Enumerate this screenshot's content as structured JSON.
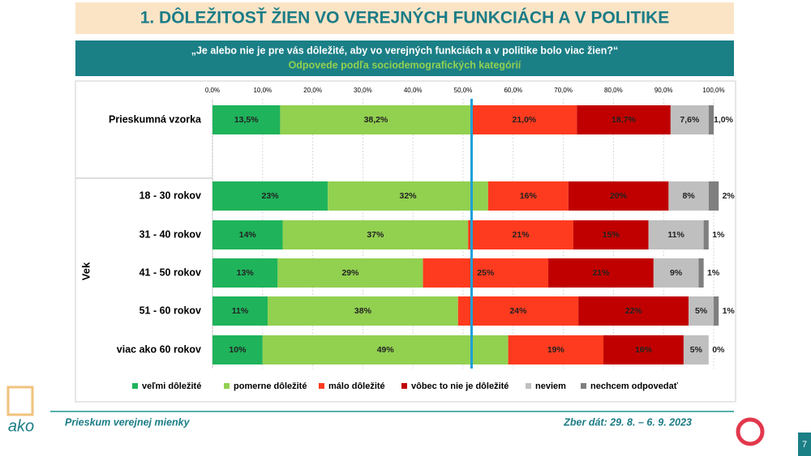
{
  "header": {
    "title": "1. DÔLEŽITOSŤ ŽIEN VO VEREJNÝCH FUNKCIÁCH A V POLITIKE",
    "question": "„Je alebo nie je pre vás dôležité, aby vo verejných funkciách a v politike bolo viac žien?“",
    "subtitle": "Odpovede podľa sociodemografických kategórií"
  },
  "chart_data": {
    "type": "bar",
    "orientation": "horizontal",
    "stacked": true,
    "categories": [
      "Prieskumná vzorka",
      "18 - 30 rokov",
      "31 - 40 rokov",
      "41 - 50 rokov",
      "51 - 60 rokov",
      "viac ako 60 rokov"
    ],
    "group_label": "Vek",
    "xlim": [
      0,
      100
    ],
    "xticks": [
      {
        "value": 0,
        "label": "0,0%"
      },
      {
        "value": 10,
        "label": "10,0%"
      },
      {
        "value": 20,
        "label": "20,0%"
      },
      {
        "value": 30,
        "label": "30,0%"
      },
      {
        "value": 40,
        "label": "40,0%"
      },
      {
        "value": 50,
        "label": "50,0%"
      },
      {
        "value": 60,
        "label": "60,0%"
      },
      {
        "value": 70,
        "label": "70,0%"
      },
      {
        "value": 80,
        "label": "80,0%"
      },
      {
        "value": 90,
        "label": "90,0%"
      },
      {
        "value": 100,
        "label": "100,0%"
      }
    ],
    "grid": true,
    "reference_line": {
      "value": 51.7,
      "color": "#1ea0d8"
    },
    "legend": "bottom",
    "series": [
      {
        "name": "veľmi dôležité",
        "color": "#1fb35b",
        "values": [
          13.5,
          23,
          14,
          13,
          11,
          10
        ],
        "value_labels": [
          "13,5%",
          "23%",
          "14%",
          "13%",
          "11%",
          "10%"
        ]
      },
      {
        "name": "pomerne dôležité",
        "color": "#92d050",
        "values": [
          38.2,
          32,
          37,
          29,
          38,
          49
        ],
        "value_labels": [
          "38,2%",
          "32%",
          "37%",
          "29%",
          "38%",
          "49%"
        ]
      },
      {
        "name": "málo dôležité",
        "color": "#ff3b1f",
        "values": [
          21.0,
          16,
          21,
          25,
          24,
          19
        ],
        "value_labels": [
          "21,0%",
          "16%",
          "21%",
          "25%",
          "24%",
          "19%"
        ]
      },
      {
        "name": "vôbec to nie je dôležité",
        "color": "#c00000",
        "values": [
          18.7,
          20,
          15,
          21,
          22,
          16
        ],
        "value_labels": [
          "18,7%",
          "20%",
          "15%",
          "21%",
          "22%",
          "16%"
        ]
      },
      {
        "name": "neviem",
        "color": "#bfbfbf",
        "values": [
          7.6,
          8,
          11,
          9,
          5,
          5
        ],
        "value_labels": [
          "7,6%",
          "8%",
          "11%",
          "9%",
          "5%",
          "5%"
        ]
      },
      {
        "name": "nechcem odpovedať",
        "color": "#7f7f7f",
        "values": [
          1.0,
          2,
          1,
          1,
          1,
          0
        ],
        "value_labels": [
          "1,0%",
          "2%",
          "1%",
          "1%",
          "1%",
          "0%"
        ]
      }
    ]
  },
  "footer": {
    "survey": "Prieskum verejnej mienky",
    "date": "Zber dát: 29. 8. – 6. 9. 2023",
    "page": "7",
    "logo": "ako"
  }
}
